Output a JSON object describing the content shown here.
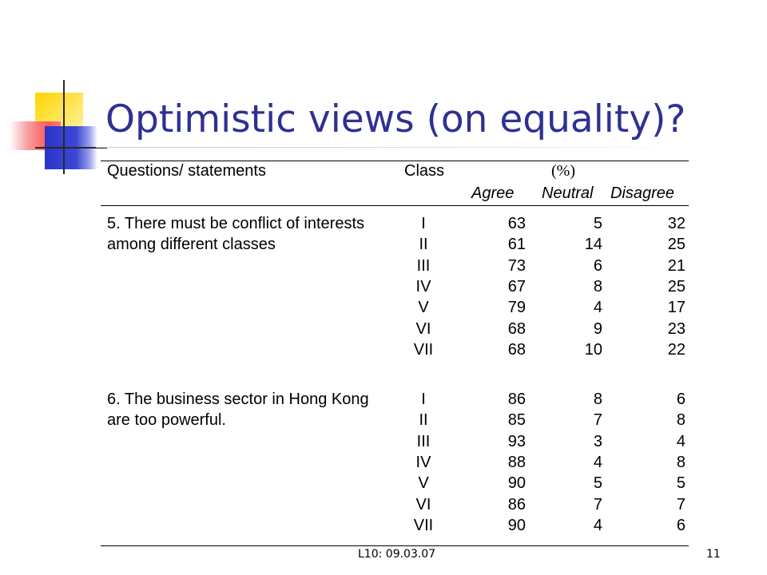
{
  "slide": {
    "title": "Optimistic views (on equality)?",
    "footer_date": "L10: 09.03.07",
    "page_number": "11"
  },
  "table": {
    "headers": {
      "question": "Questions/ statements",
      "class": "Class",
      "percent": "(%)",
      "agree": "Agree",
      "neutral": "Neutral",
      "disagree": "Disagree"
    },
    "groups": [
      {
        "question_lines": [
          "5. There must be conflict of interests",
          "among different classes"
        ],
        "rows": [
          {
            "class": "I",
            "agree": "63",
            "neutral": "5",
            "disagree": "32"
          },
          {
            "class": "II",
            "agree": "61",
            "neutral": "14",
            "disagree": "25"
          },
          {
            "class": "III",
            "agree": "73",
            "neutral": "6",
            "disagree": "21"
          },
          {
            "class": "IV",
            "agree": "67",
            "neutral": "8",
            "disagree": "25"
          },
          {
            "class": "V",
            "agree": "79",
            "neutral": "4",
            "disagree": "17"
          },
          {
            "class": "VI",
            "agree": "68",
            "neutral": "9",
            "disagree": "23"
          },
          {
            "class": "VII",
            "agree": "68",
            "neutral": "10",
            "disagree": "22"
          }
        ]
      },
      {
        "question_lines": [
          "6. The business sector in Hong Kong",
          "are too powerful."
        ],
        "rows": [
          {
            "class": "I",
            "agree": "86",
            "neutral": "8",
            "disagree": "6"
          },
          {
            "class": "II",
            "agree": "85",
            "neutral": "7",
            "disagree": "8"
          },
          {
            "class": "III",
            "agree": "93",
            "neutral": "3",
            "disagree": "4"
          },
          {
            "class": "IV",
            "agree": "88",
            "neutral": "4",
            "disagree": "8"
          },
          {
            "class": "V",
            "agree": "90",
            "neutral": "5",
            "disagree": "5"
          },
          {
            "class": "VI",
            "agree": "86",
            "neutral": "7",
            "disagree": "7"
          },
          {
            "class": "VII",
            "agree": "90",
            "neutral": "4",
            "disagree": "6"
          }
        ]
      }
    ]
  }
}
